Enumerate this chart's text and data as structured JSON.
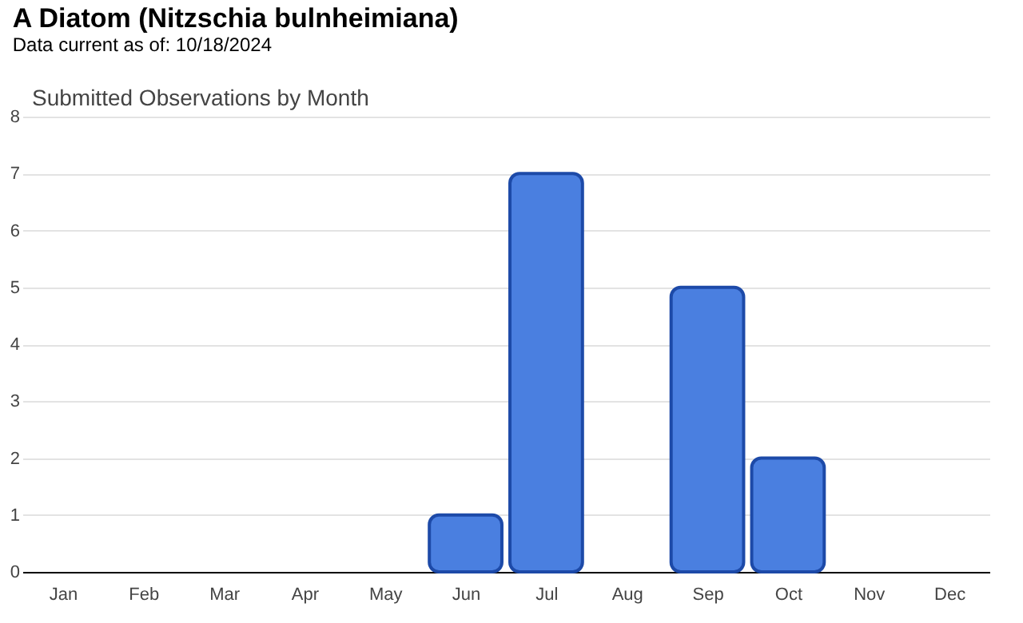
{
  "chart_data": {
    "type": "bar",
    "title": "A Diatom   (Nitzschia bulnheimiana)",
    "subtitle": "Data current as of: 10/18/2024",
    "annotations": [
      "Submitted Observations by Month"
    ],
    "categories": [
      "Jan",
      "Feb",
      "Mar",
      "Apr",
      "May",
      "Jun",
      "Jul",
      "Aug",
      "Sep",
      "Oct",
      "Nov",
      "Dec"
    ],
    "values": [
      0,
      0,
      0,
      0,
      0,
      1,
      7,
      0,
      5,
      2,
      0,
      0
    ],
    "color": "#4a7fe0",
    "ylim": [
      0,
      8
    ],
    "yticks": [
      0,
      1,
      2,
      3,
      4,
      5,
      6,
      7,
      8
    ],
    "grid": "y"
  }
}
